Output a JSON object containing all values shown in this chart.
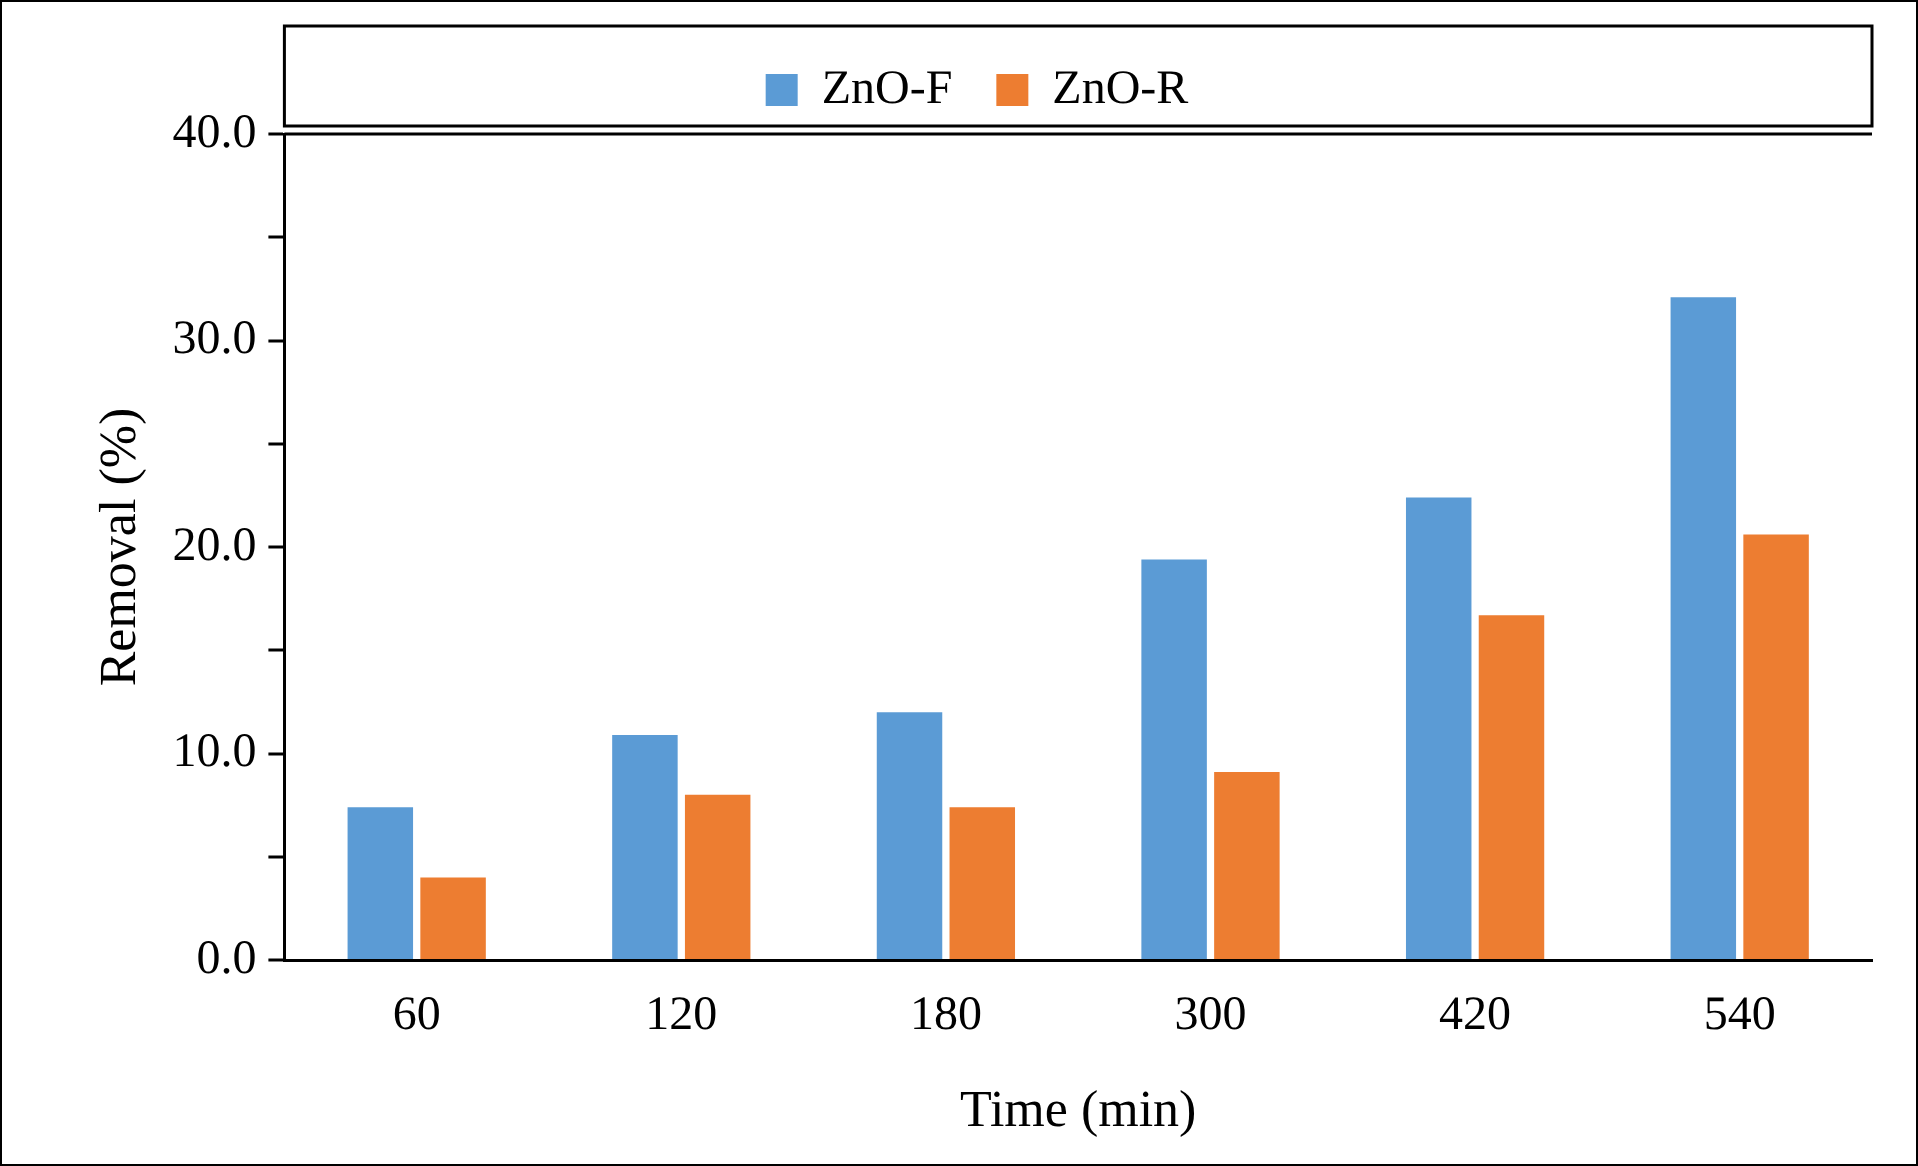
{
  "chart_data": {
    "type": "bar",
    "xlabel": "Time (min)",
    "ylabel": "Removal (%)",
    "categories": [
      "60",
      "120",
      "180",
      "300",
      "420",
      "540"
    ],
    "series": [
      {
        "name": "ZnO-F",
        "color": "#5b9bd5",
        "values": [
          7.4,
          10.9,
          12.0,
          19.4,
          22.4,
          32.1
        ]
      },
      {
        "name": "ZnO-R",
        "color": "#ed7d31",
        "values": [
          4.0,
          8.0,
          7.4,
          9.1,
          16.7,
          20.6
        ]
      }
    ],
    "ylim": [
      0,
      40
    ],
    "yticks": [
      {
        "value": 0,
        "label": "0.0"
      },
      {
        "value": 5,
        "label": null
      },
      {
        "value": 10,
        "label": "10.0"
      },
      {
        "value": 15,
        "label": null
      },
      {
        "value": 20,
        "label": "20.0"
      },
      {
        "value": 25,
        "label": null
      },
      {
        "value": 30,
        "label": "30.0"
      },
      {
        "value": 35,
        "label": null
      },
      {
        "value": 40,
        "label": "40.0"
      }
    ],
    "grid": false,
    "legend": "top"
  }
}
